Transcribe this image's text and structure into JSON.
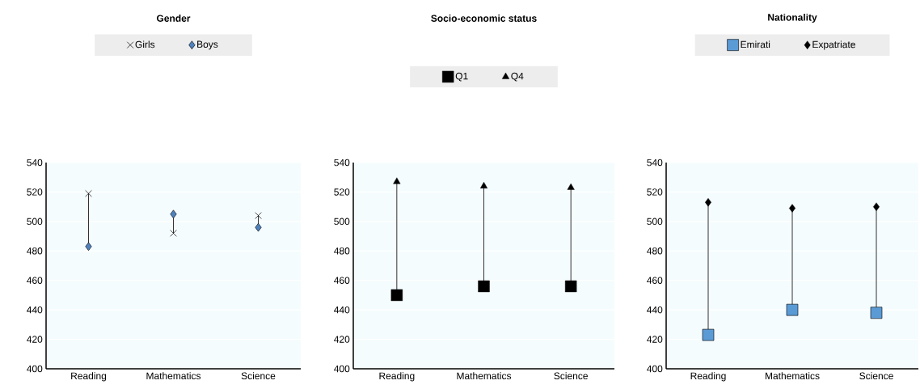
{
  "chart_data": [
    {
      "type": "scatter",
      "title": "Gender",
      "categories": [
        "Reading",
        "Mathematics",
        "Science"
      ],
      "ylim": [
        400,
        540
      ],
      "yticks": [
        400,
        420,
        440,
        460,
        480,
        500,
        520,
        540
      ],
      "grid": "y",
      "legend": "top",
      "series": [
        {
          "name": "Girls",
          "color": "#000000",
          "marker": "cross",
          "values": [
            519,
            492,
            504
          ]
        },
        {
          "name": "Boys",
          "color": "#4f81bd",
          "marker": "diamond",
          "values": [
            483,
            505,
            496
          ]
        }
      ]
    },
    {
      "type": "scatter",
      "title": "Socio-economic status",
      "categories": [
        "Reading",
        "Mathematics",
        "Science"
      ],
      "ylim": [
        400,
        540
      ],
      "yticks": [
        400,
        420,
        440,
        460,
        480,
        500,
        520,
        540
      ],
      "grid": "y",
      "legend": "top",
      "series": [
        {
          "name": "Q1",
          "color": "#000000",
          "values": [
            450,
            456,
            456
          ]
        },
        {
          "name": "Q4",
          "color": "#000000",
          "marker": "triangle",
          "values": [
            527,
            524,
            523
          ]
        }
      ]
    },
    {
      "type": "scatter",
      "title": "Nationality",
      "categories": [
        "Reading",
        "Mathematics",
        "Science"
      ],
      "ylim": [
        400,
        540
      ],
      "yticks": [
        400,
        420,
        440,
        460,
        480,
        500,
        520,
        540
      ],
      "grid": "y",
      "legend": "top",
      "series": [
        {
          "name": "Emirati",
          "color": "#5b9bd5",
          "marker": "square",
          "values": [
            423,
            440,
            438
          ]
        },
        {
          "name": "Expatriate",
          "color": "#000000",
          "marker": "diamond",
          "values": [
            513,
            509,
            510
          ]
        }
      ]
    }
  ]
}
